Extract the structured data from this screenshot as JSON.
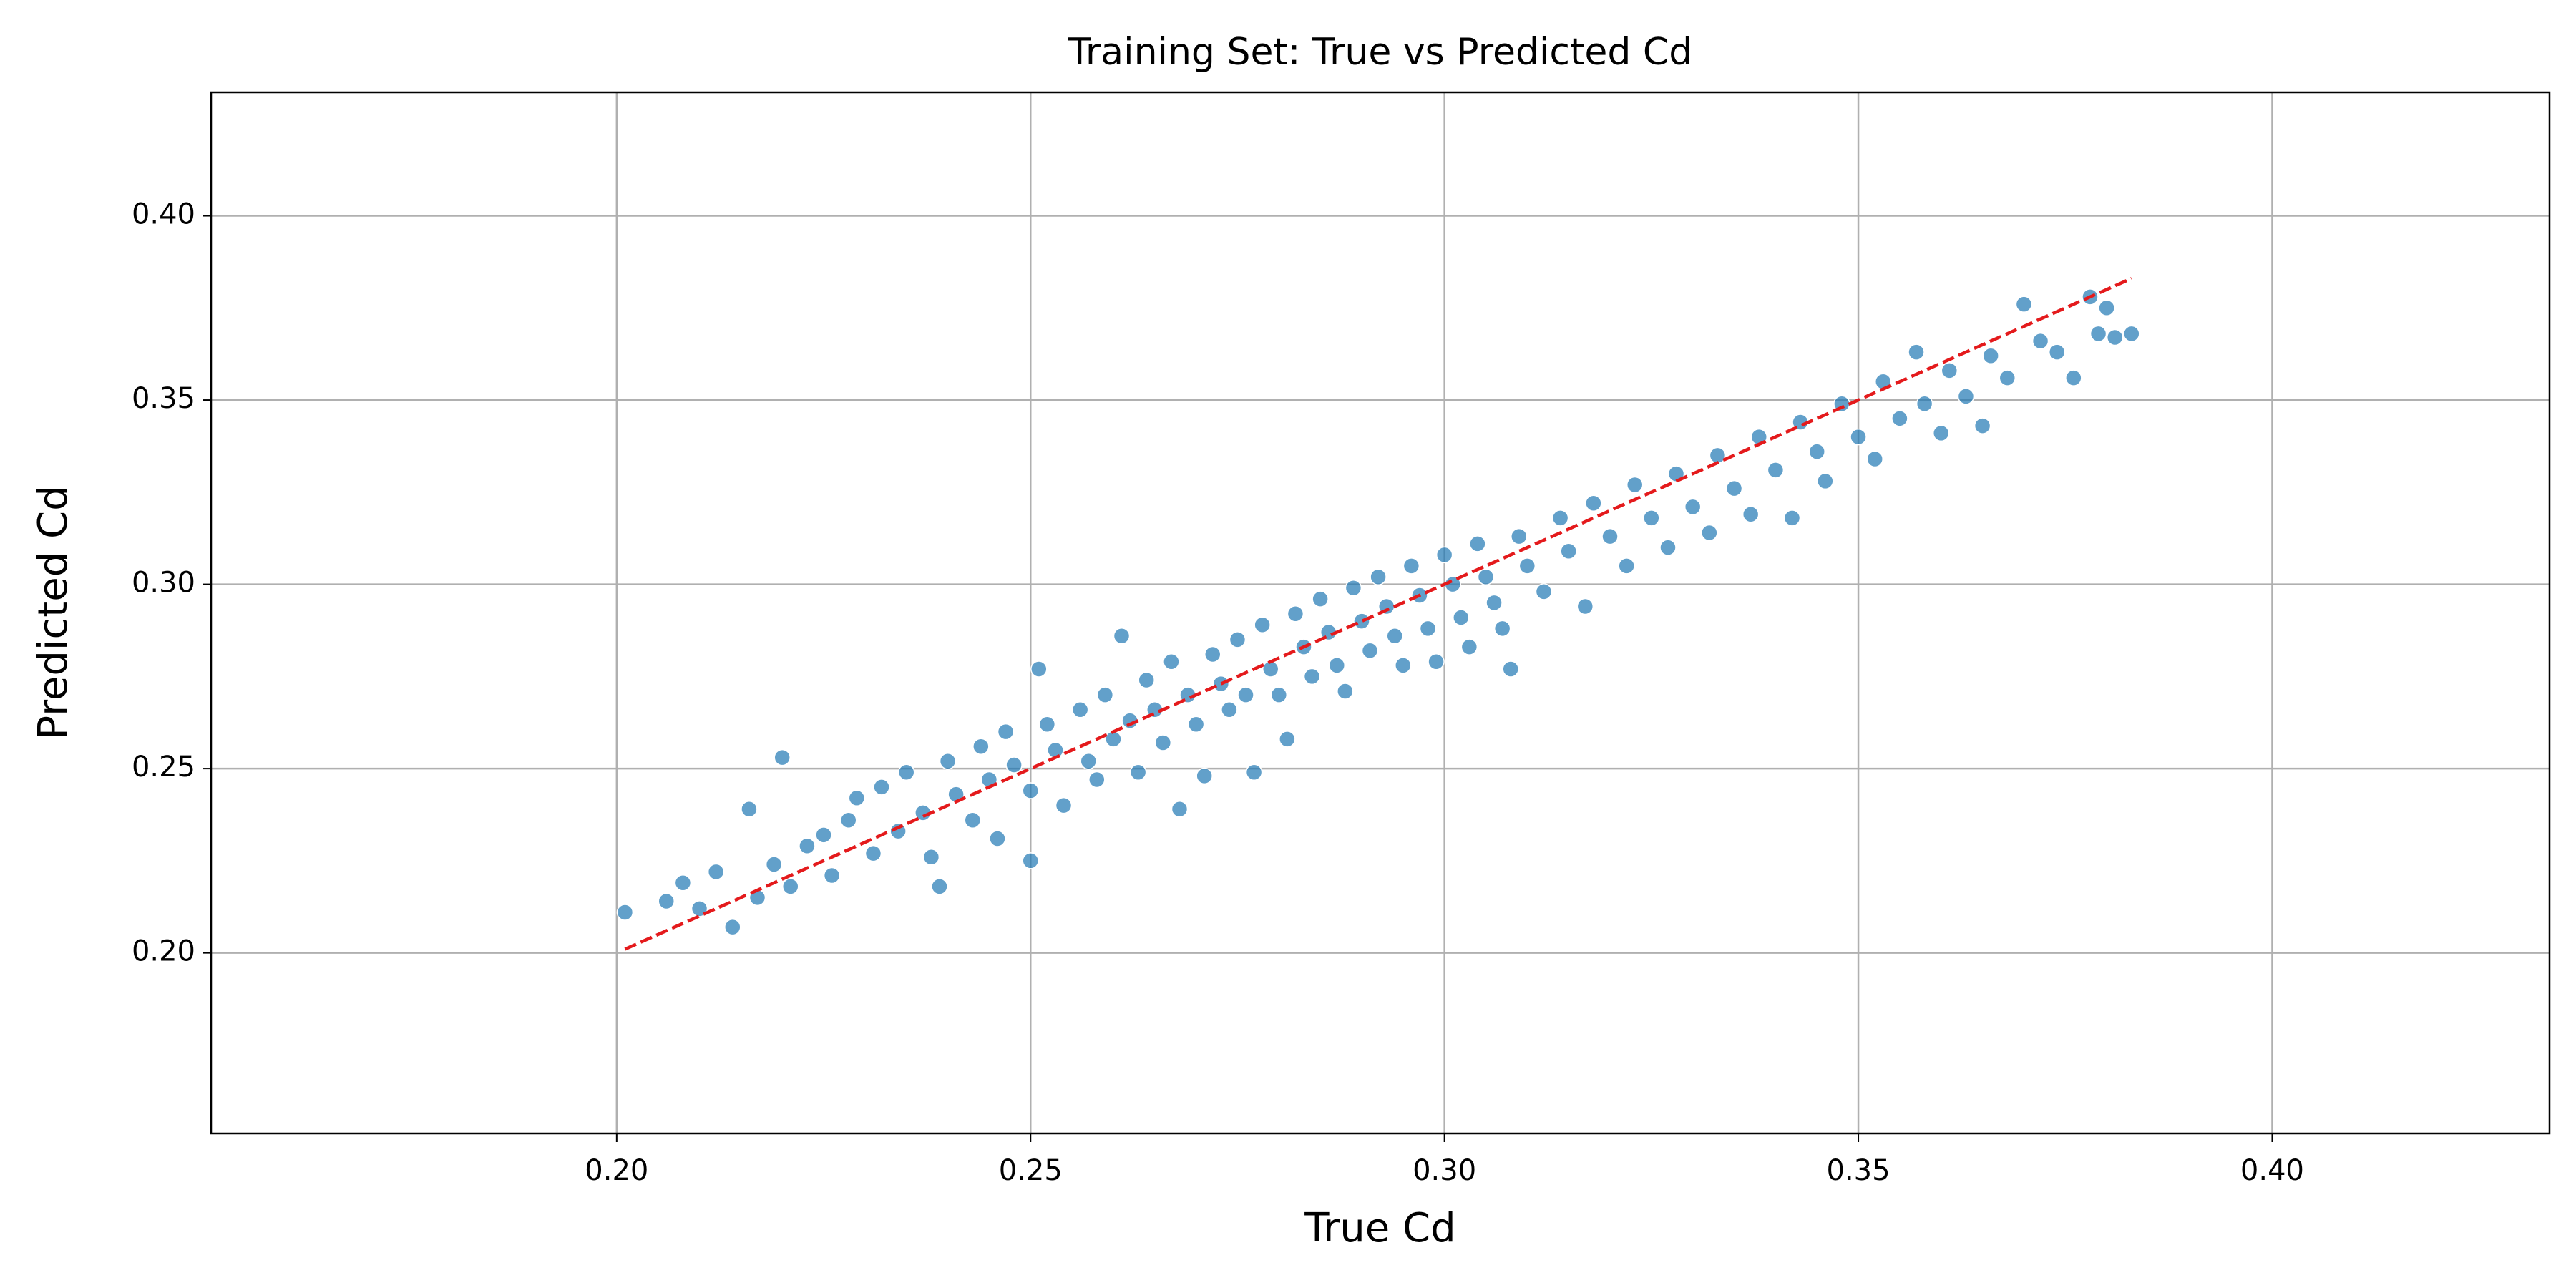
{
  "chart_data": {
    "type": "scatter",
    "title": "Training Set: True vs Predicted Cd",
    "xlabel": "True Cd",
    "ylabel": "Predicted Cd",
    "xlim": [
      0.151,
      0.4335
    ],
    "ylim": [
      0.151,
      0.4335
    ],
    "xticks": [
      {
        "value": 0.2,
        "label": "0.20"
      },
      {
        "value": 0.25,
        "label": "0.25"
      },
      {
        "value": 0.3,
        "label": "0.30"
      },
      {
        "value": 0.35,
        "label": "0.35"
      },
      {
        "value": 0.4,
        "label": "0.40"
      }
    ],
    "yticks": [
      {
        "value": 0.2,
        "label": "0.20"
      },
      {
        "value": 0.25,
        "label": "0.25"
      },
      {
        "value": 0.3,
        "label": "0.30"
      },
      {
        "value": 0.35,
        "label": "0.35"
      },
      {
        "value": 0.4,
        "label": "0.40"
      }
    ],
    "grid": true,
    "series": [
      {
        "color": "#1f77b4",
        "x": [
          0.201,
          0.206,
          0.208,
          0.21,
          0.212,
          0.214,
          0.216,
          0.217,
          0.219,
          0.22,
          0.221,
          0.223,
          0.225,
          0.226,
          0.228,
          0.229,
          0.231,
          0.232,
          0.234,
          0.235,
          0.237,
          0.238,
          0.239,
          0.24,
          0.241,
          0.243,
          0.244,
          0.245,
          0.246,
          0.247,
          0.248,
          0.25,
          0.25,
          0.251,
          0.252,
          0.253,
          0.254,
          0.256,
          0.257,
          0.258,
          0.259,
          0.26,
          0.261,
          0.262,
          0.263,
          0.264,
          0.265,
          0.266,
          0.267,
          0.268,
          0.269,
          0.27,
          0.271,
          0.272,
          0.273,
          0.274,
          0.275,
          0.276,
          0.277,
          0.278,
          0.279,
          0.28,
          0.281,
          0.282,
          0.283,
          0.284,
          0.285,
          0.286,
          0.287,
          0.288,
          0.289,
          0.29,
          0.291,
          0.292,
          0.293,
          0.294,
          0.295,
          0.296,
          0.297,
          0.298,
          0.299,
          0.3,
          0.301,
          0.302,
          0.303,
          0.304,
          0.305,
          0.306,
          0.307,
          0.308,
          0.309,
          0.31,
          0.312,
          0.314,
          0.315,
          0.317,
          0.318,
          0.32,
          0.322,
          0.323,
          0.325,
          0.327,
          0.328,
          0.33,
          0.332,
          0.333,
          0.335,
          0.337,
          0.338,
          0.34,
          0.342,
          0.343,
          0.345,
          0.346,
          0.348,
          0.35,
          0.352,
          0.353,
          0.355,
          0.357,
          0.358,
          0.36,
          0.361,
          0.363,
          0.365,
          0.366,
          0.368,
          0.37,
          0.372,
          0.374,
          0.376,
          0.378,
          0.379,
          0.38,
          0.381,
          0.383
        ],
        "values": [
          0.211,
          0.214,
          0.219,
          0.212,
          0.222,
          0.207,
          0.239,
          0.215,
          0.224,
          0.253,
          0.218,
          0.229,
          0.232,
          0.221,
          0.236,
          0.242,
          0.227,
          0.245,
          0.233,
          0.249,
          0.238,
          0.226,
          0.218,
          0.252,
          0.243,
          0.236,
          0.256,
          0.247,
          0.231,
          0.26,
          0.251,
          0.225,
          0.244,
          0.277,
          0.262,
          0.255,
          0.24,
          0.266,
          0.252,
          0.247,
          0.27,
          0.258,
          0.286,
          0.263,
          0.249,
          0.274,
          0.266,
          0.257,
          0.279,
          0.239,
          0.27,
          0.262,
          0.248,
          0.281,
          0.273,
          0.266,
          0.285,
          0.27,
          0.249,
          0.289,
          0.277,
          0.27,
          0.258,
          0.292,
          0.283,
          0.275,
          0.296,
          0.287,
          0.278,
          0.271,
          0.299,
          0.29,
          0.282,
          0.302,
          0.294,
          0.286,
          0.278,
          0.305,
          0.297,
          0.288,
          0.279,
          0.308,
          0.3,
          0.291,
          0.283,
          0.311,
          0.302,
          0.295,
          0.288,
          0.277,
          0.313,
          0.305,
          0.298,
          0.318,
          0.309,
          0.294,
          0.322,
          0.313,
          0.305,
          0.327,
          0.318,
          0.31,
          0.33,
          0.321,
          0.314,
          0.335,
          0.326,
          0.319,
          0.34,
          0.331,
          0.318,
          0.344,
          0.336,
          0.328,
          0.349,
          0.34,
          0.334,
          0.355,
          0.345,
          0.363,
          0.349,
          0.341,
          0.358,
          0.351,
          0.343,
          0.362,
          0.356,
          0.376,
          0.366,
          0.363,
          0.356,
          0.378,
          0.368,
          0.375,
          0.367,
          0.368
        ]
      }
    ],
    "reference_line": {
      "color": "#e41a1c",
      "dashed": true,
      "x": [
        0.201,
        0.383
      ],
      "values": [
        0.201,
        0.383
      ]
    }
  }
}
